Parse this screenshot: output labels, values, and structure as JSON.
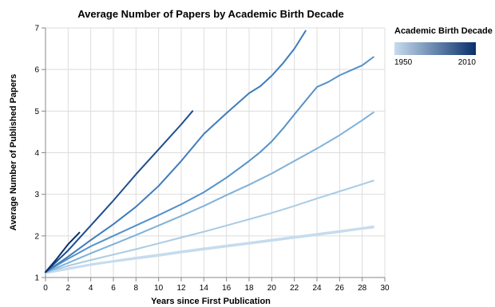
{
  "chart_data": {
    "type": "line",
    "title": "Average Number of Papers by Academic Birth Decade",
    "xlabel": "Years since First Publication",
    "ylabel": "Average Number of Published Papers",
    "xlim": [
      0,
      30
    ],
    "ylim": [
      1,
      7
    ],
    "x_ticks": [
      "0",
      "2",
      "4",
      "6",
      "8",
      "10",
      "12",
      "14",
      "16",
      "18",
      "20",
      "22",
      "24",
      "26",
      "28",
      "30"
    ],
    "y_ticks": [
      "1",
      "2",
      "3",
      "4",
      "5",
      "6",
      "7"
    ],
    "grid": true,
    "legend": {
      "title": "Academic Birth Decade",
      "placement": "top-right",
      "min_label": "1950",
      "max_label": "2010",
      "color_start": "#c6dbef",
      "color_end": "#08306b"
    },
    "series": [
      {
        "color": "#c6dbef",
        "x": [
          0,
          2,
          4,
          6,
          8,
          10,
          12,
          14,
          16,
          18,
          20,
          22,
          24,
          26,
          28,
          29
        ],
        "y": [
          1.1,
          1.2,
          1.3,
          1.38,
          1.45,
          1.52,
          1.6,
          1.67,
          1.74,
          1.81,
          1.88,
          1.95,
          2.02,
          2.09,
          2.17,
          2.2
        ]
      },
      {
        "color": "#c6dbef",
        "x": [
          0,
          2,
          4,
          6,
          8,
          10,
          12,
          14,
          16,
          18,
          20,
          22,
          24,
          26,
          28,
          29
        ],
        "y": [
          1.12,
          1.22,
          1.32,
          1.4,
          1.48,
          1.55,
          1.63,
          1.7,
          1.77,
          1.84,
          1.91,
          1.98,
          2.05,
          2.12,
          2.19,
          2.23
        ]
      },
      {
        "color": "#a9cce3",
        "x": [
          0,
          2,
          4,
          6,
          8,
          10,
          12,
          14,
          16,
          18,
          20,
          22,
          24,
          26,
          28,
          29
        ],
        "y": [
          1.12,
          1.28,
          1.42,
          1.55,
          1.68,
          1.82,
          1.96,
          2.1,
          2.25,
          2.4,
          2.55,
          2.72,
          2.9,
          3.07,
          3.24,
          3.33
        ]
      },
      {
        "color": "#7fb2d9",
        "x": [
          0,
          2,
          4,
          6,
          8,
          10,
          12,
          14,
          16,
          18,
          20,
          22,
          24,
          26,
          28,
          29
        ],
        "y": [
          1.12,
          1.35,
          1.58,
          1.8,
          2.02,
          2.25,
          2.48,
          2.72,
          2.98,
          3.23,
          3.5,
          3.8,
          4.1,
          4.42,
          4.78,
          4.97
        ]
      },
      {
        "color": "#5592c8",
        "x": [
          0,
          2,
          4,
          6,
          8,
          10,
          12,
          14,
          16,
          18,
          19,
          20,
          21,
          22,
          23,
          24,
          25,
          26,
          27,
          28,
          29
        ],
        "y": [
          1.13,
          1.45,
          1.75,
          2.0,
          2.25,
          2.5,
          2.76,
          3.05,
          3.4,
          3.8,
          4.02,
          4.27,
          4.58,
          4.92,
          5.25,
          5.58,
          5.7,
          5.86,
          5.98,
          6.1,
          6.3
        ]
      },
      {
        "color": "#3f7cbc",
        "x": [
          0,
          2,
          4,
          6,
          8,
          10,
          12,
          14,
          16,
          18,
          19,
          20,
          21,
          22,
          23
        ],
        "y": [
          1.13,
          1.5,
          1.9,
          2.28,
          2.7,
          3.2,
          3.8,
          4.45,
          4.95,
          5.43,
          5.6,
          5.85,
          6.15,
          6.5,
          6.93
        ]
      },
      {
        "color": "#1f4e8c",
        "x": [
          0,
          2,
          4,
          6,
          8,
          10,
          12,
          13
        ],
        "y": [
          1.13,
          1.65,
          2.25,
          2.85,
          3.48,
          4.08,
          4.68,
          5.0
        ]
      },
      {
        "color": "#08306b",
        "x": [
          0,
          1,
          2,
          3
        ],
        "y": [
          1.13,
          1.45,
          1.8,
          2.08
        ]
      }
    ]
  }
}
